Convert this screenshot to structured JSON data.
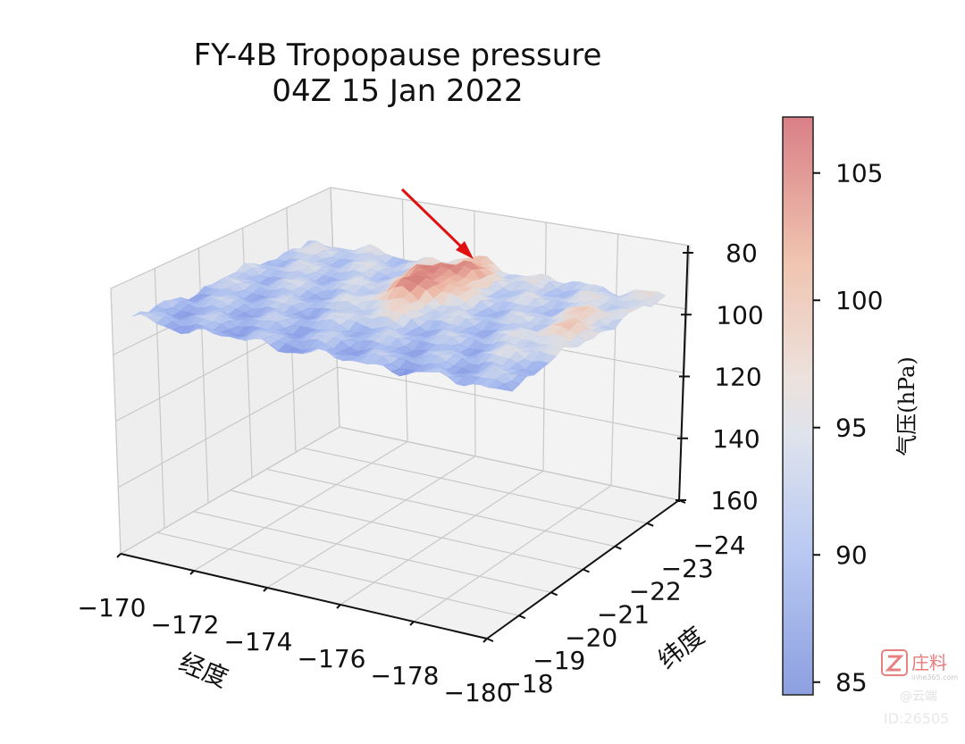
{
  "chart_data": {
    "type": "surface3d",
    "title": "FY-4B Tropopause pressure",
    "subtitle": "04Z 15 Jan 2022",
    "xlabel": "经度",
    "ylabel": "纬度",
    "zlabel": "",
    "x_ticks": [
      "−170",
      "−172",
      "−174",
      "−176",
      "−178",
      "−180"
    ],
    "y_ticks": [
      "−18",
      "−19",
      "−20",
      "−21",
      "−22",
      "−23",
      "−24"
    ],
    "z_ticks": [
      "80",
      "100",
      "120",
      "140",
      "160"
    ],
    "xlim": [
      -170,
      -180
    ],
    "ylim": [
      -18,
      -24
    ],
    "zlim": [
      160,
      80
    ],
    "z_inverted": true,
    "colormap": "coolwarm",
    "colorbar": {
      "label": "气压(hPa)",
      "ticks": [
        "105",
        "100",
        "95",
        "90",
        "85"
      ],
      "range": [
        84.5,
        107.2
      ]
    },
    "surface_pressure_range": [
      85,
      107
    ],
    "peak_region": "near −175°, −22°",
    "grid": true,
    "annotation": {
      "type": "arrow",
      "color": "#e01010"
    }
  },
  "watermark": {
    "brand": "庄料",
    "site": "inhe365.com",
    "credit": "@云端",
    "id": "ID:26505"
  }
}
